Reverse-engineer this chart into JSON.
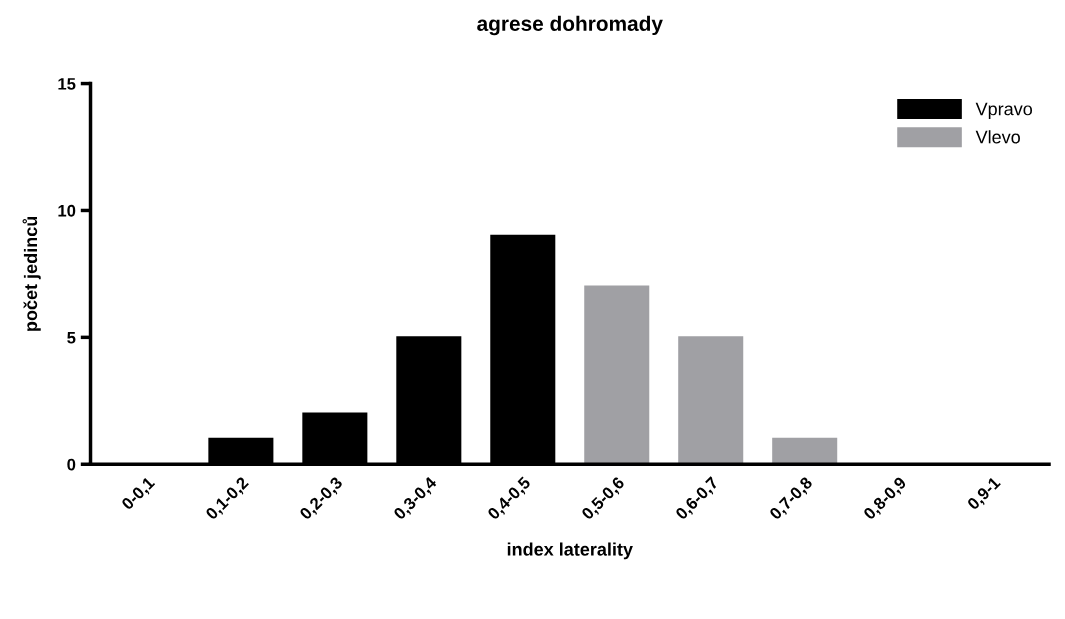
{
  "chart_data": {
    "type": "bar",
    "title": "agrese dohromady",
    "xlabel": "index laterality",
    "ylabel": "počet jedinců",
    "categories": [
      "0-0,1",
      "0,1-0,2",
      "0,2-0,3",
      "0,3-0,4",
      "0,4-0,5",
      "0,5-0,6",
      "0,6-0,7",
      "0,7-0,8",
      "0,8-0,9",
      "0,9-1"
    ],
    "series": [
      {
        "name": "Vpravo",
        "color": "#000000",
        "values": [
          0,
          1,
          2,
          5,
          9,
          null,
          null,
          null,
          null,
          null
        ]
      },
      {
        "name": "Vlevo",
        "color": "#a0a0a4",
        "values": [
          null,
          null,
          null,
          null,
          null,
          7,
          5,
          1,
          0,
          0
        ]
      }
    ],
    "ylim": [
      0,
      15
    ],
    "yticks": [
      0,
      5,
      10,
      15
    ],
    "grid": false,
    "legend": "top right"
  }
}
